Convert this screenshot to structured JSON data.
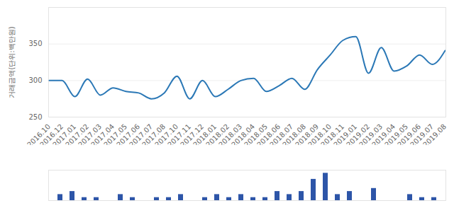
{
  "chart_data": [
    {
      "type": "line",
      "y_label": "거래금액(단위:백만원)",
      "categories": [
        "2016.10",
        "2016.12",
        "2017.01",
        "2017.02",
        "2017.03",
        "2017.04",
        "2017.05",
        "2017.06",
        "2017.07",
        "2017.08",
        "2017.10",
        "2017.11",
        "2017.12",
        "2018.01",
        "2018.02",
        "2018.03",
        "2018.04",
        "2018.05",
        "2018.06",
        "2018.07",
        "2018.08",
        "2018.09",
        "2018.10",
        "2018.11",
        "2019.01",
        "2019.02",
        "2019.03",
        "2019.04",
        "2019.05",
        "2019.06",
        "2019.07",
        "2019.08"
      ],
      "values": [
        300,
        300,
        278,
        302,
        280,
        290,
        285,
        283,
        275,
        283,
        306,
        275,
        300,
        278,
        288,
        300,
        303,
        285,
        293,
        303,
        288,
        315,
        335,
        355,
        360,
        310,
        345,
        313,
        320,
        335,
        322,
        341
      ],
      "color": "#2b78b6",
      "ylim": [
        250,
        400
      ],
      "yticks": [
        250,
        300,
        350
      ],
      "grid": true
    },
    {
      "type": "bar",
      "categories": [
        "2016.10",
        "2016.12",
        "2017.01",
        "2017.02",
        "2017.03",
        "2017.04",
        "2017.05",
        "2017.06",
        "2017.07",
        "2017.08",
        "2017.10",
        "2017.11",
        "2017.12",
        "2018.01",
        "2018.02",
        "2018.03",
        "2018.04",
        "2018.05",
        "2018.06",
        "2018.07",
        "2018.08",
        "2018.09",
        "2018.10",
        "2018.11",
        "2019.01",
        "2019.02",
        "2019.03",
        "2019.04",
        "2019.05",
        "2019.06",
        "2019.07",
        "2019.08"
      ],
      "values": [
        2,
        3,
        1,
        1,
        0,
        2,
        1,
        0,
        1,
        1,
        2,
        0,
        1,
        2,
        1,
        2,
        1,
        1,
        3,
        2,
        3,
        7,
        9,
        2,
        3,
        0,
        4,
        0,
        0,
        2,
        1,
        1
      ],
      "color": "#2d55a8",
      "ylim": [
        0,
        10
      ],
      "tick_labels": false
    }
  ]
}
